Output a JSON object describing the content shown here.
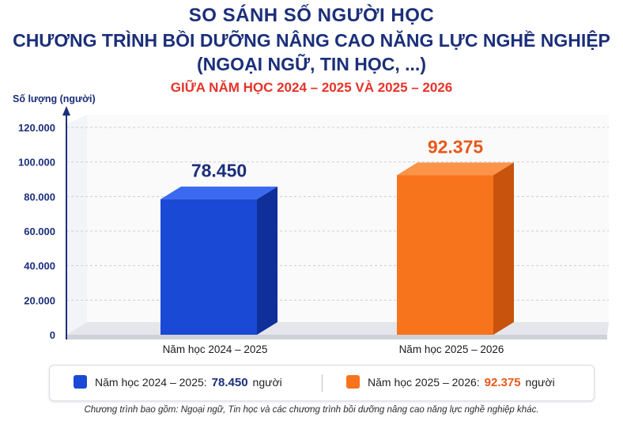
{
  "title_lines": [
    "SO SÁNH SỐ NGƯỜI HỌC",
    "CHƯƠNG TRÌNH BỒI DƯỠNG NÂNG CAO NĂNG LỰC NGHỀ NGHIỆP",
    "(NGOẠI NGỮ, TIN HỌC, ...)"
  ],
  "subtitle": "GIỮA NĂM HỌC 2024 – 2025 VÀ 2025 – 2026",
  "chart_data": {
    "type": "bar",
    "title": "SO SÁNH SỐ NGƯỜI HỌC CHƯƠNG TRÌNH BỒI DƯỠNG NÂNG CAO NĂNG LỰC NGHỀ NGHIỆP (NGOẠI NGỮ, TIN HỌC, ...)",
    "subtitle": "GIỮA NĂM HỌC 2024 – 2025 VÀ 2025 – 2026",
    "ylabel": "Số lượng (người)",
    "xlabel": "",
    "categories": [
      "Năm học 2024 – 2025",
      "Năm học 2025 – 2026"
    ],
    "values": [
      78450,
      92375
    ],
    "value_labels": [
      "78.450",
      "92.375"
    ],
    "ylim": [
      0,
      120000
    ],
    "yticks": [
      0,
      20000,
      40000,
      60000,
      80000,
      100000,
      120000
    ],
    "ytick_labels": [
      "0",
      "20.000",
      "40.000",
      "60.000",
      "80.000",
      "100.000",
      "120.000"
    ],
    "grid": true,
    "legend_position": "bottom",
    "colors": [
      "#1a49d6",
      "#f7731c"
    ]
  },
  "legend": {
    "items": [
      {
        "label": "Năm học 2024 – 2025:",
        "value": "78.450",
        "unit": "người",
        "color": "#1a49d6",
        "value_color": "#1b2f7a"
      },
      {
        "label": "Năm học 2025 – 2026:",
        "value": "92.375",
        "unit": "người",
        "color": "#f7731c",
        "value_color": "#e8581a"
      }
    ]
  },
  "footnote": "Chương trình bao gồm: Ngoại ngữ, Tin học và các chương trình bồi dưỡng nâng cao năng lực nghề nghiệp khác."
}
